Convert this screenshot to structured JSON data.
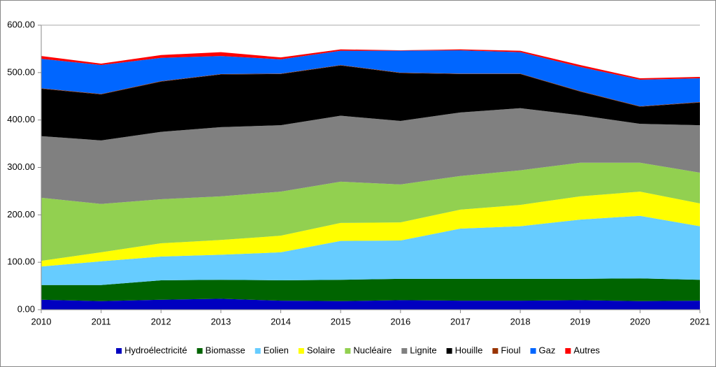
{
  "chart_data": {
    "type": "stacked_area",
    "categories": [
      "2010",
      "2011",
      "2012",
      "2013",
      "2014",
      "2015",
      "2016",
      "2017",
      "2018",
      "2019",
      "2020",
      "2021"
    ],
    "series": [
      {
        "name": "Hydroélectricité",
        "color": "#0000c0",
        "values": [
          21,
          18,
          21,
          23,
          19,
          18,
          20,
          19,
          19,
          20,
          18,
          19
        ]
      },
      {
        "name": "Biomasse",
        "color": "#006400",
        "values": [
          31,
          34,
          41,
          40,
          43,
          45,
          45,
          46,
          46,
          45,
          48,
          44
        ]
      },
      {
        "name": "Eolien",
        "color": "#66ccff",
        "values": [
          39,
          50,
          50,
          53,
          59,
          82,
          81,
          106,
          111,
          125,
          132,
          113
        ]
      },
      {
        "name": "Solaire",
        "color": "#ffff00",
        "values": [
          12,
          19,
          28,
          31,
          35,
          38,
          38,
          40,
          45,
          49,
          51,
          48
        ]
      },
      {
        "name": "Nucléaire",
        "color": "#92d050",
        "values": [
          133,
          102,
          93,
          92,
          93,
          87,
          80,
          71,
          73,
          71,
          61,
          65
        ]
      },
      {
        "name": "Lignite",
        "color": "#808080",
        "values": [
          130,
          134,
          142,
          146,
          140,
          139,
          134,
          134,
          131,
          100,
          82,
          100
        ]
      },
      {
        "name": "Houille",
        "color": "#000000",
        "values": [
          100,
          97,
          106,
          111,
          108,
          106,
          101,
          81,
          72,
          50,
          36,
          48
        ]
      },
      {
        "name": "Fioul",
        "color": "#993300",
        "values": [
          1,
          1,
          1,
          1,
          1,
          1,
          1,
          1,
          1,
          1,
          1,
          1
        ]
      },
      {
        "name": "Gaz",
        "color": "#0066ff",
        "values": [
          62,
          61,
          49,
          38,
          30,
          30,
          46,
          49,
          45,
          51,
          56,
          50
        ]
      },
      {
        "name": "Autres",
        "color": "#ff0000",
        "values": [
          6,
          3,
          6,
          8,
          4,
          3,
          1,
          2,
          3,
          4,
          3,
          3
        ]
      }
    ],
    "ylim": [
      0,
      600
    ],
    "yticks": [
      {
        "value": 0,
        "label": "0.00"
      },
      {
        "value": 100,
        "label": "100.00"
      },
      {
        "value": 200,
        "label": "200.00"
      },
      {
        "value": 300,
        "label": "300.00"
      },
      {
        "value": 400,
        "label": "400.00"
      },
      {
        "value": 500,
        "label": "500.00"
      },
      {
        "value": 600,
        "label": "600.00"
      }
    ],
    "legend": "bottom"
  }
}
